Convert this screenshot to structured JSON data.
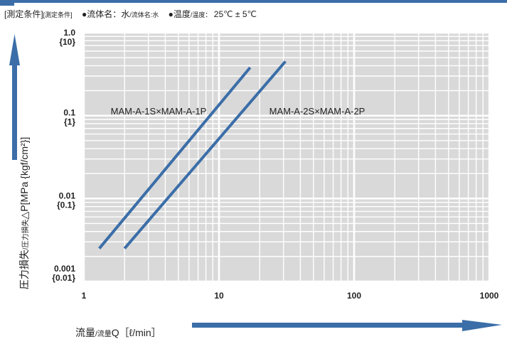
{
  "conditions": {
    "title": "[測定条件]",
    "title_sub": "[測定条件]",
    "fluid_label": "●流体名：",
    "fluid_value": "水",
    "fluid_sub": "/流体名:水",
    "temp_label": "●温度",
    "temp_sub": "/温度：",
    "temp_value": "25℃ ± 5℃"
  },
  "axis": {
    "y_main": "圧力損失",
    "y_sub": "/圧力損失",
    "y_symbol": "△P[MPa {kgf/cm²}]",
    "x_main": "流量",
    "x_sub": "/流量",
    "x_symbol": "Q［ℓ/min］"
  },
  "colors": {
    "accent": "#3b6ea8",
    "plot_bg": "#d9d9d9",
    "grid": "#ffffff"
  },
  "chart_data": {
    "type": "line",
    "x_scale": "log",
    "y_scale": "log",
    "xlim": [
      1,
      1000
    ],
    "ylim": [
      0.001,
      1.0
    ],
    "grid": true,
    "x_ticks": [
      "1",
      "10",
      "100",
      "1000"
    ],
    "y_ticks": [
      {
        "value": 1.0,
        "label": "1.0",
        "sub": "{10}"
      },
      {
        "value": 0.1,
        "label": "0.1",
        "sub": "{1}"
      },
      {
        "value": 0.01,
        "label": "0.01",
        "sub": "{0.1}"
      },
      {
        "value": 0.001,
        "label": "0.001",
        "sub": "{0.01}"
      }
    ],
    "series": [
      {
        "name": "MAM-A-1S×MAM-A-1P",
        "x": [
          1.3,
          17.0
        ],
        "y": [
          0.0025,
          0.38
        ]
      },
      {
        "name": "MAM-A-2S×MAM-A-2P",
        "x": [
          2.0,
          31.0
        ],
        "y": [
          0.0025,
          0.45
        ]
      }
    ]
  }
}
